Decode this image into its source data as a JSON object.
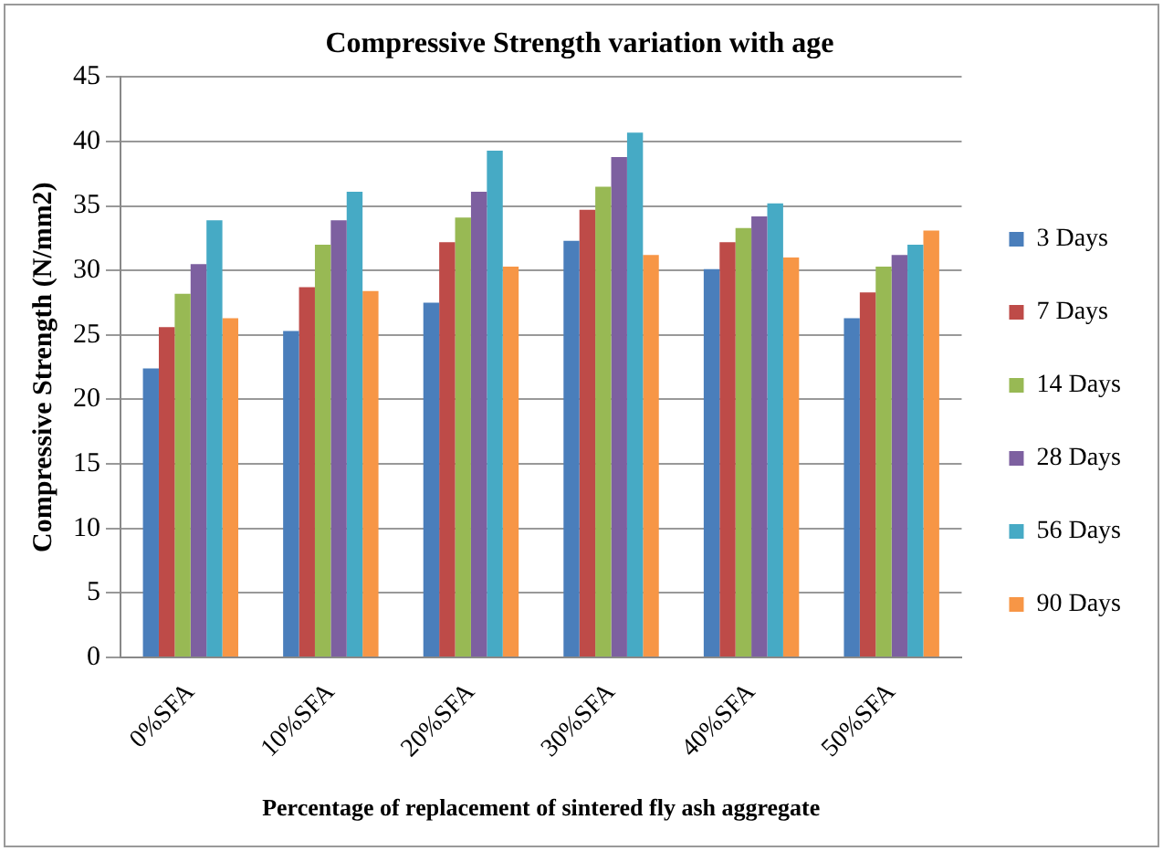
{
  "chart_data": {
    "type": "bar",
    "title": "Compressive Strength variation with age",
    "xlabel": "Percentage of replacement of sintered fly ash aggregate",
    "ylabel": "Compressive Strength (N/mm2)",
    "categories": [
      "0%SFA",
      "10%SFA",
      "20%SFA",
      "30%SFA",
      "40%SFA",
      "50%SFA"
    ],
    "series": [
      {
        "name": "3 Days",
        "color": "#4a7ebb",
        "values": [
          22.4,
          25.3,
          27.5,
          32.3,
          30.1,
          26.3
        ]
      },
      {
        "name": "7 Days",
        "color": "#be4b48",
        "values": [
          25.6,
          28.7,
          32.2,
          34.7,
          32.2,
          28.3
        ]
      },
      {
        "name": "14 Days",
        "color": "#98b954",
        "values": [
          28.2,
          32.0,
          34.1,
          36.5,
          33.3,
          30.3
        ]
      },
      {
        "name": "28 Days",
        "color": "#7d60a0",
        "values": [
          30.5,
          33.9,
          36.1,
          38.8,
          34.2,
          31.2
        ]
      },
      {
        "name": "56 Days",
        "color": "#46aac5",
        "values": [
          33.9,
          36.1,
          39.3,
          40.7,
          35.2,
          32.0
        ]
      },
      {
        "name": "90 Days",
        "color": "#f79646",
        "values": [
          26.3,
          28.4,
          30.3,
          31.2,
          31.0,
          33.1
        ]
      }
    ],
    "ylim": [
      0,
      45
    ],
    "yticks": [
      0,
      5,
      10,
      15,
      20,
      25,
      30,
      35,
      40,
      45
    ],
    "grid": "y",
    "legend": "right"
  }
}
